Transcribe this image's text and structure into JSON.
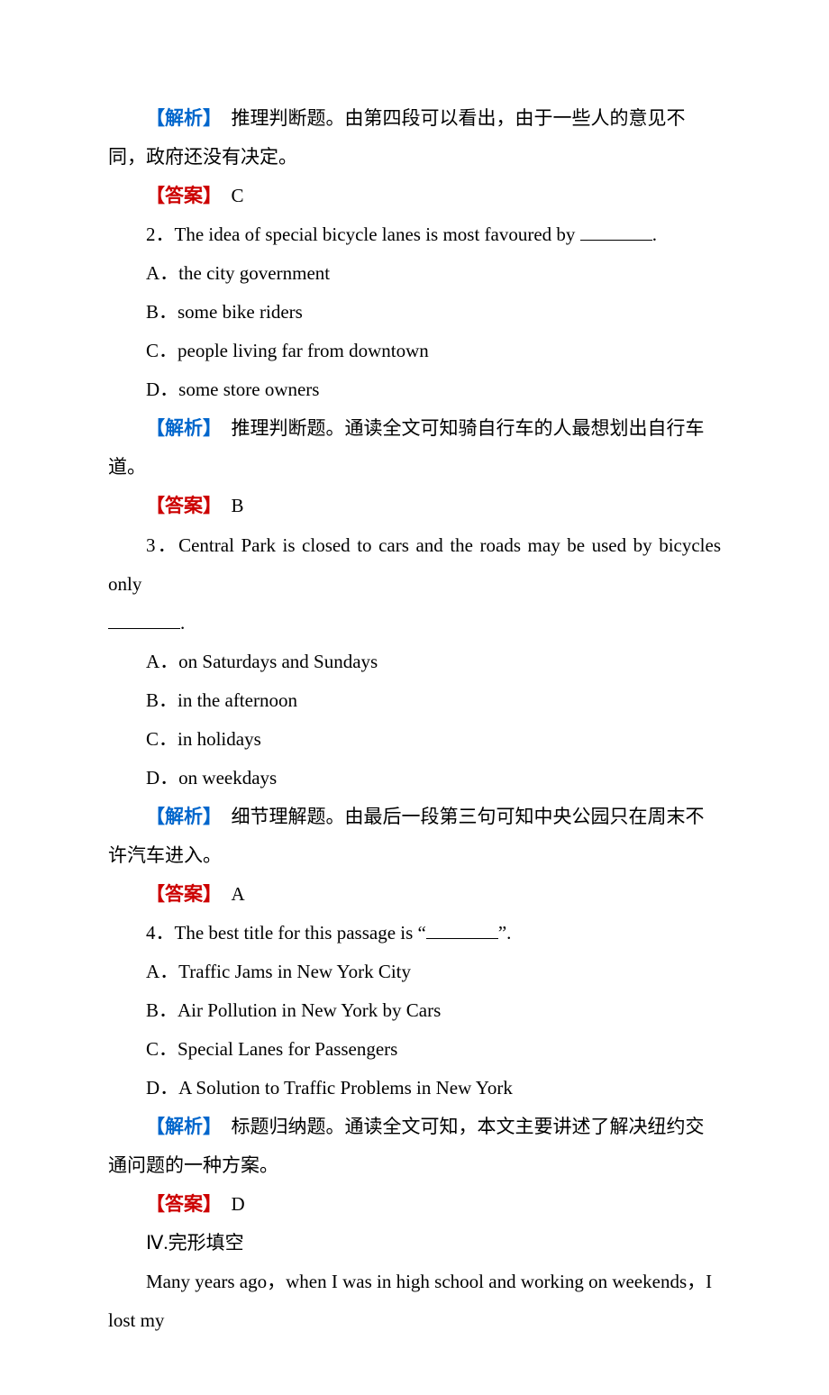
{
  "q1": {
    "jiexi_label": "【解析】",
    "jiexi_text": "　推理判断题。由第四段可以看出，由于一些人的意见不同，政府还没有决定。",
    "daan_label": "【答案】",
    "daan_text": "　C"
  },
  "q2": {
    "stem_num": "2．",
    "stem_text": "The idea of special bicycle lanes is most favoured by ",
    "stem_tail": ".",
    "A": "A．the city government",
    "B": "B．some bike riders",
    "C": "C．people living far from downtown",
    "D": "D．some store owners",
    "jiexi_label": "【解析】",
    "jiexi_text": "　推理判断题。通读全文可知骑自行车的人最想划出自行车道。",
    "daan_label": "【答案】",
    "daan_text": "　B"
  },
  "q3": {
    "stem_num": "3．",
    "stem_text": "Central Park is closed to cars and the roads may be used by bicycles only ",
    "stem_tail": ".",
    "A": "A．on Saturdays and Sundays",
    "B": "B．in the afternoon",
    "C": "C．in holidays",
    "D": "D．on weekdays",
    "jiexi_label": "【解析】",
    "jiexi_text": "　细节理解题。由最后一段第三句可知中央公园只在周末不许汽车进入。",
    "daan_label": "【答案】",
    "daan_text": "　A"
  },
  "q4": {
    "stem_num": "4．",
    "stem_text_a": "The best title for this passage is “",
    "stem_text_b": "”.",
    "A": "A．Traffic Jams in New York City",
    "B": "B．Air Pollution in New York by Cars",
    "C": "C．Special Lanes for Passengers",
    "D": "D．A Solution to Traffic Problems in New York",
    "jiexi_label": "【解析】",
    "jiexi_text": "　标题归纳题。通读全文可知，本文主要讲述了解决纽约交通问题的一种方案。",
    "daan_label": "【答案】",
    "daan_text": "　D"
  },
  "section4": {
    "heading": "Ⅳ.完形填空",
    "line1": "Many years ago，when I was in high school and working on weekends，I lost my"
  }
}
